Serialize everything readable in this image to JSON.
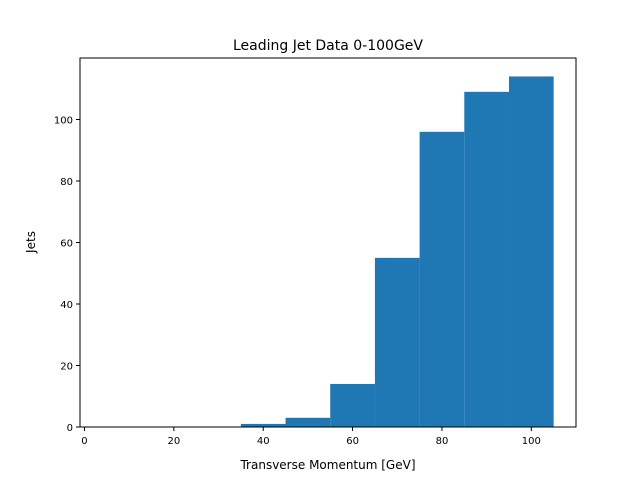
{
  "chart_data": {
    "type": "bar",
    "title": "Leading Jet Data 0-100GeV",
    "xlabel": "Transverse Momentum [GeV]",
    "ylabel": "Jets",
    "xlim": [
      -1,
      110
    ],
    "ylim": [
      0,
      120
    ],
    "bin_edges": [
      5,
      15,
      25,
      35,
      45,
      55,
      65,
      75,
      85,
      95,
      105
    ],
    "values": [
      0,
      0,
      0,
      1,
      3,
      14,
      55,
      96,
      109,
      114
    ],
    "xticks": [
      0,
      20,
      40,
      60,
      80,
      100
    ],
    "yticks": [
      0,
      20,
      40,
      60,
      80,
      100
    ],
    "bar_color": "#1f77b4",
    "grid": false
  }
}
